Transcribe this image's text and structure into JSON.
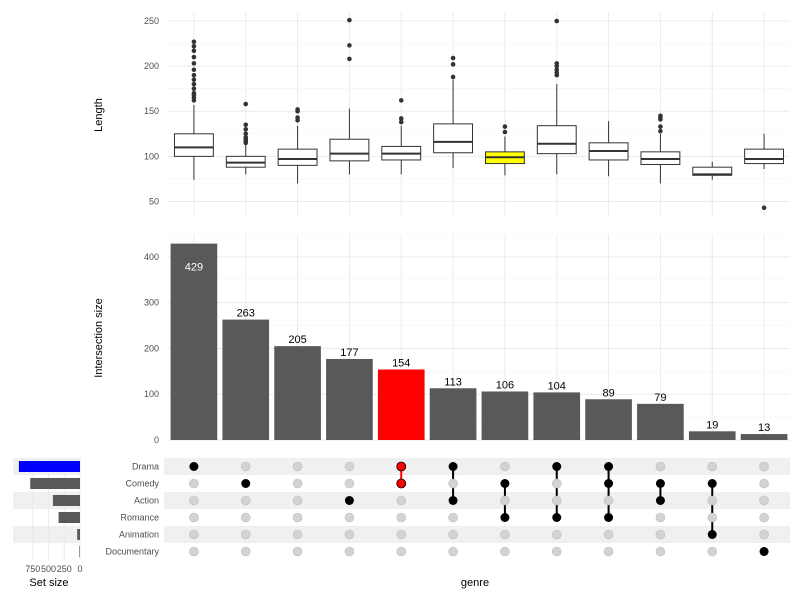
{
  "chart_data": [
    {
      "type": "boxplot",
      "ylabel": "Length",
      "ylim": [
        35,
        260
      ],
      "yticks": [
        50,
        100,
        150,
        200,
        250
      ],
      "grid": true,
      "boxes": [
        {
          "q1": 100,
          "median": 110,
          "q3": 125,
          "lo": 74,
          "hi": 157,
          "outliers": [
            162,
            165,
            168,
            170,
            175,
            180,
            185,
            190,
            196,
            203,
            210,
            217,
            222,
            227
          ],
          "fill": "#ffffff"
        },
        {
          "q1": 88,
          "median": 93,
          "q3": 100,
          "lo": 80,
          "hi": 114,
          "outliers": [
            115,
            117,
            119,
            121,
            125,
            130,
            135,
            158
          ],
          "fill": "#ffffff"
        },
        {
          "q1": 90,
          "median": 97,
          "q3": 108,
          "lo": 70,
          "hi": 134,
          "outliers": [
            140,
            143,
            150,
            152
          ],
          "fill": "#ffffff"
        },
        {
          "q1": 95,
          "median": 103,
          "q3": 119,
          "lo": 80,
          "hi": 153,
          "outliers": [
            208,
            223,
            251
          ],
          "fill": "#ffffff"
        },
        {
          "q1": 96,
          "median": 103,
          "q3": 111,
          "lo": 80,
          "hi": 134,
          "outliers": [
            138,
            142,
            162
          ],
          "fill": "#ffffff"
        },
        {
          "q1": 104,
          "median": 116,
          "q3": 136,
          "lo": 87,
          "hi": 185,
          "outliers": [
            188,
            202,
            209
          ],
          "fill": "#ffffff"
        },
        {
          "q1": 92,
          "median": 99,
          "q3": 105,
          "lo": 79,
          "hi": 122,
          "outliers": [
            127,
            133
          ],
          "fill": "#ffff00"
        },
        {
          "q1": 103,
          "median": 114,
          "q3": 134,
          "lo": 80,
          "hi": 180,
          "outliers": [
            190,
            193,
            196,
            200,
            203,
            250
          ],
          "fill": "#ffffff"
        },
        {
          "q1": 96,
          "median": 106,
          "q3": 115,
          "lo": 78,
          "hi": 139,
          "outliers": [],
          "fill": "#ffffff"
        },
        {
          "q1": 91,
          "median": 97,
          "q3": 105,
          "lo": 70,
          "hi": 125,
          "outliers": [
            128,
            133,
            141,
            143,
            145
          ],
          "fill": "#ffffff"
        },
        {
          "q1": 79,
          "median": 80,
          "q3": 88,
          "lo": 74,
          "hi": 94,
          "outliers": [],
          "fill": "#ffffff"
        },
        {
          "q1": 92,
          "median": 97,
          "q3": 108,
          "lo": 86,
          "hi": 125,
          "outliers": [
            43
          ],
          "fill": "#ffffff"
        }
      ]
    },
    {
      "type": "bar",
      "ylabel": "Intersection size",
      "ylim": [
        0,
        450
      ],
      "yticks": [
        0,
        100,
        200,
        300,
        400
      ],
      "values": [
        429,
        263,
        205,
        177,
        154,
        113,
        106,
        104,
        89,
        79,
        19,
        13
      ],
      "labels": [
        "429",
        "263",
        "205",
        "177",
        "154",
        "113",
        "106",
        "104",
        "89",
        "79",
        "19",
        "13"
      ],
      "colors": [
        "#595959",
        "#595959",
        "#595959",
        "#595959",
        "#ff0000",
        "#595959",
        "#595959",
        "#595959",
        "#595959",
        "#595959",
        "#595959",
        "#595959"
      ]
    },
    {
      "type": "matrix",
      "xlabel": "genre",
      "sets": [
        "Drama",
        "Comedy",
        "Action",
        "Romance",
        "Animation",
        "Documentary"
      ],
      "intersections": [
        {
          "members": [
            0
          ],
          "color": "#000000"
        },
        {
          "members": [
            1
          ],
          "color": "#000000"
        },
        {
          "members": [],
          "color": "#000000"
        },
        {
          "members": [
            2
          ],
          "color": "#000000"
        },
        {
          "members": [
            0,
            1
          ],
          "color": "#ff0000"
        },
        {
          "members": [
            0,
            2
          ],
          "color": "#000000"
        },
        {
          "members": [
            1,
            3
          ],
          "color": "#000000"
        },
        {
          "members": [
            0,
            3
          ],
          "color": "#000000"
        },
        {
          "members": [
            0,
            1,
            3
          ],
          "color": "#000000"
        },
        {
          "members": [
            1,
            2
          ],
          "color": "#000000"
        },
        {
          "members": [
            1,
            4
          ],
          "color": "#000000"
        },
        {
          "members": [
            5
          ],
          "color": "#000000"
        }
      ]
    },
    {
      "type": "bar-horizontal",
      "xlabel": "Set size",
      "xticks": [
        750,
        500,
        250,
        0
      ],
      "xtick_labels": [
        "750",
        "500",
        "250",
        "0"
      ],
      "xlim": [
        1000,
        0
      ],
      "values": [
        970,
        790,
        430,
        340,
        45,
        10
      ],
      "colors": [
        "#0000ff",
        "#595959",
        "#595959",
        "#595959",
        "#595959",
        "#595959"
      ]
    }
  ]
}
